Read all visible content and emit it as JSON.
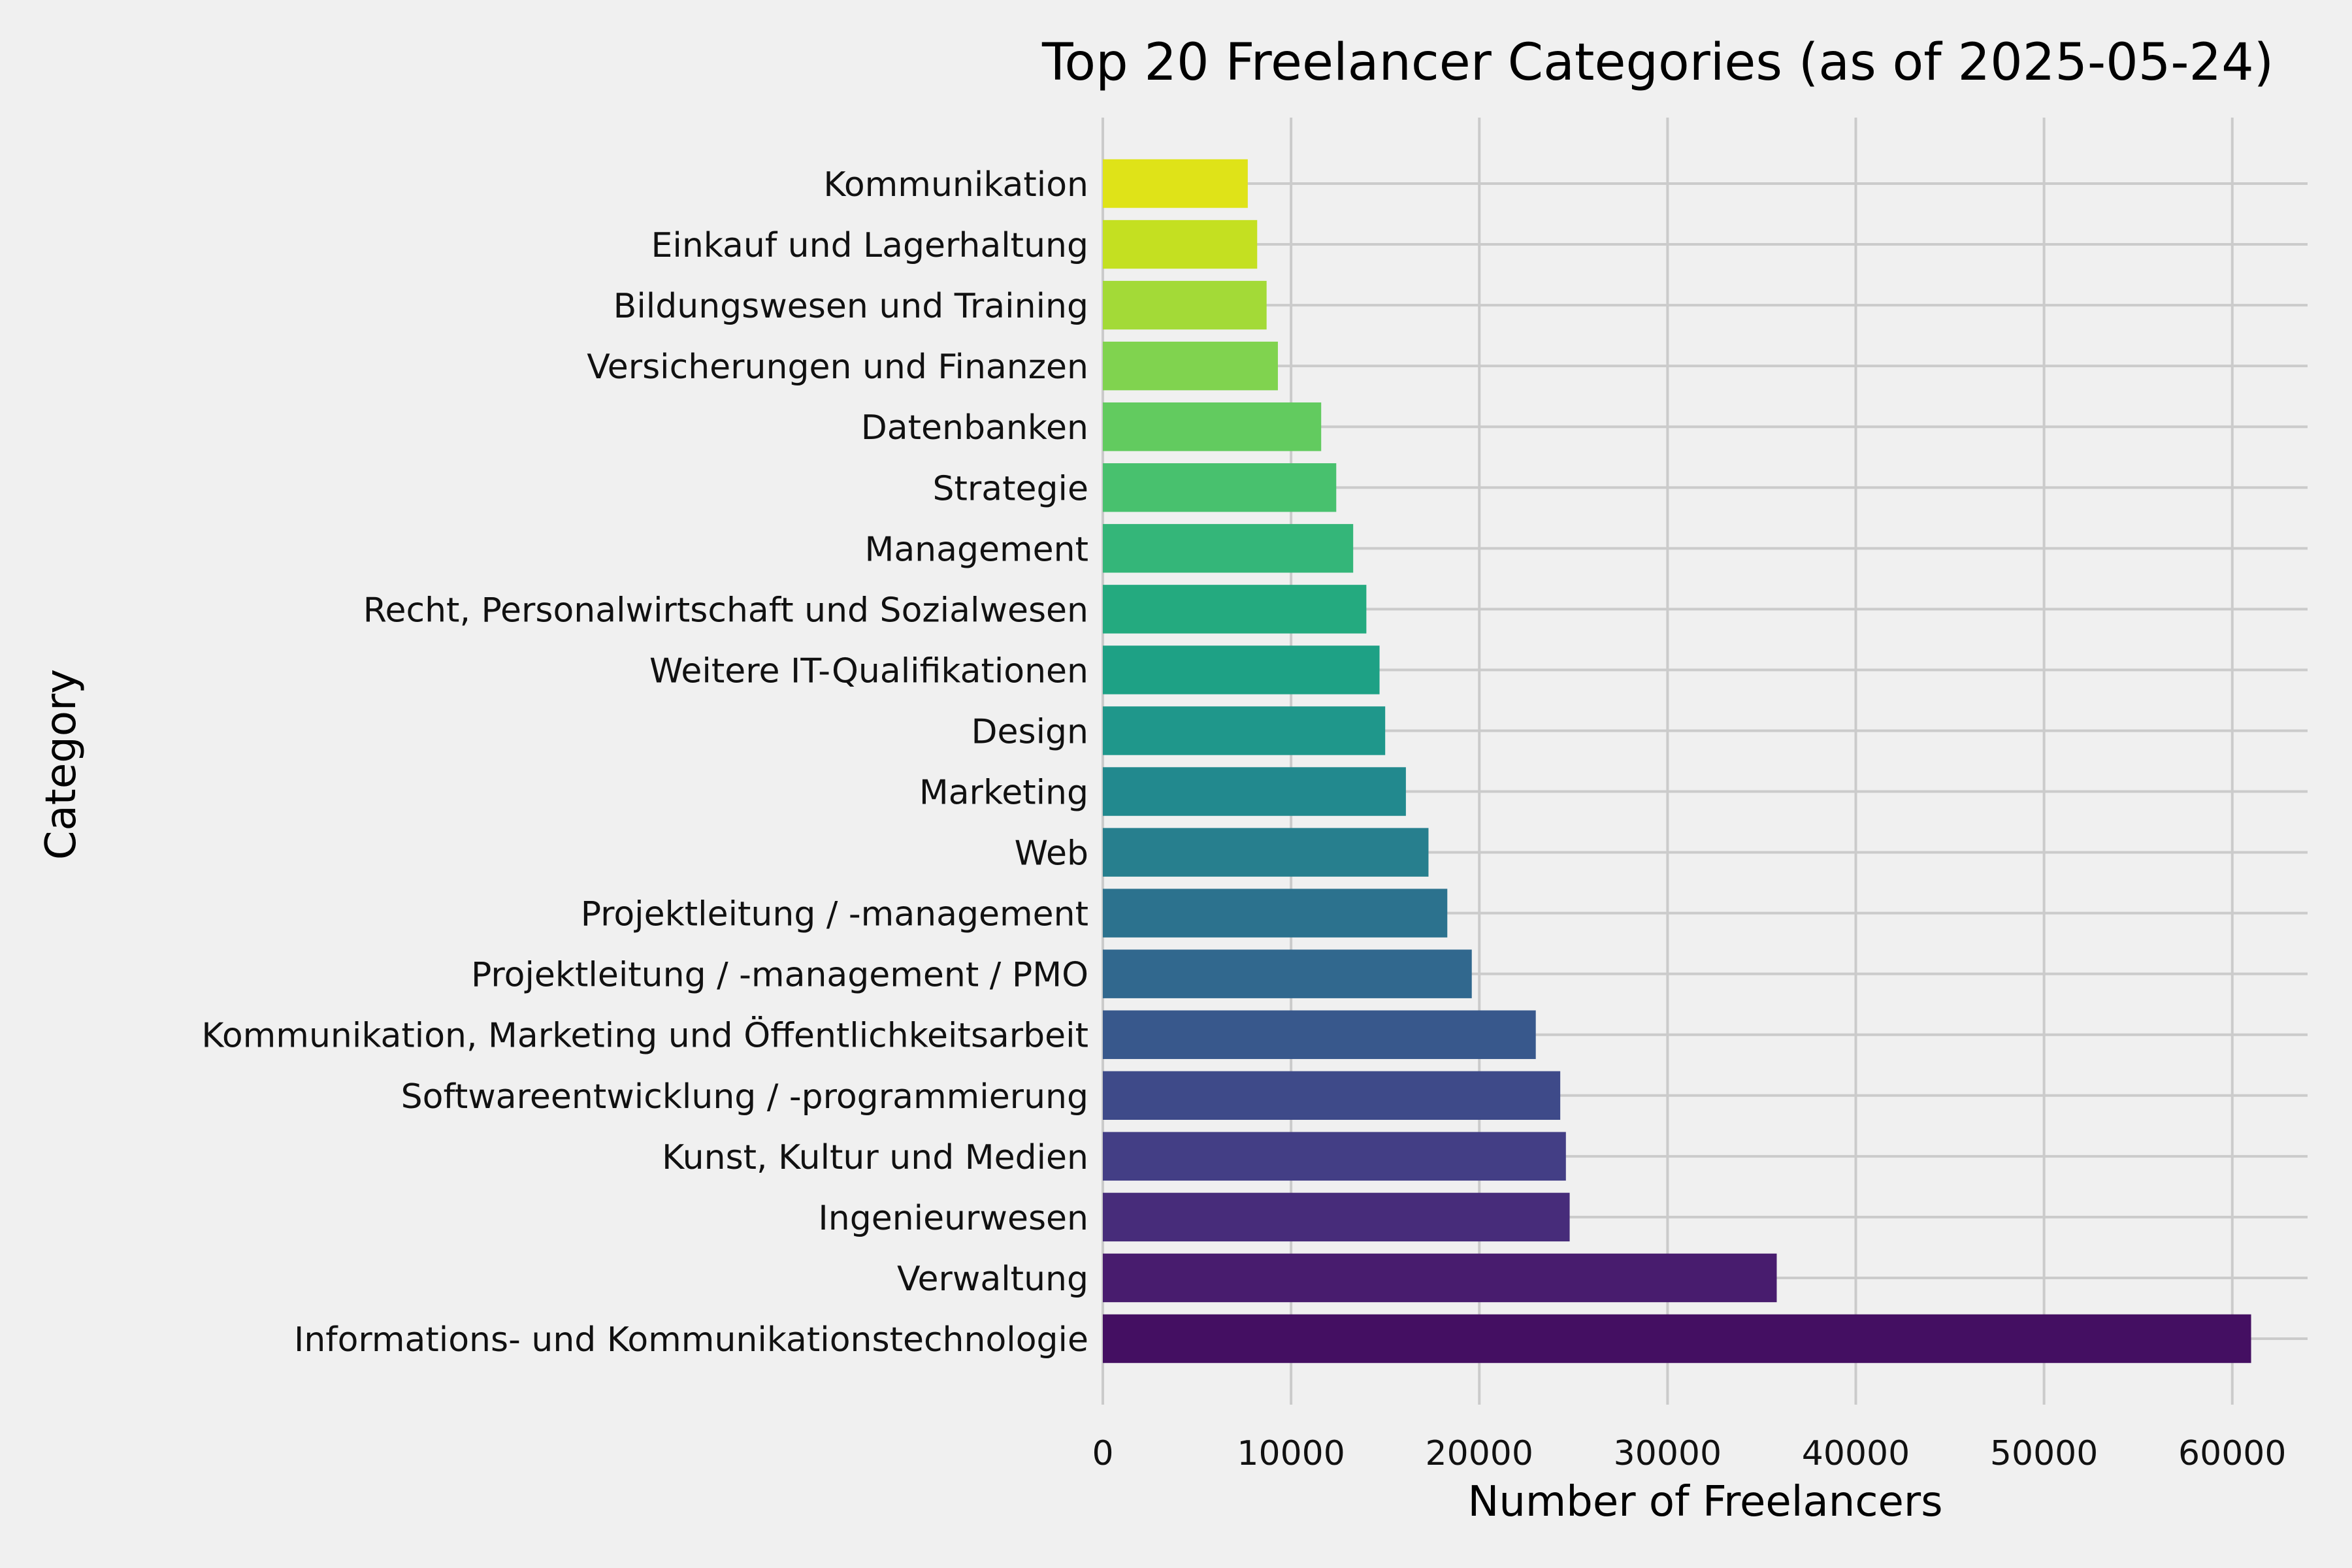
{
  "chart_data": {
    "type": "bar",
    "orientation": "horizontal",
    "title": "Top 20 Freelancer Categories (as of 2025-05-24)",
    "xlabel": "Number of Freelancers",
    "ylabel": "Category",
    "xlim": [
      0,
      64000
    ],
    "xticks": [
      0,
      10000,
      20000,
      30000,
      40000,
      50000,
      60000
    ],
    "grid": true,
    "background": "#f0f0f0",
    "colormap": "viridis",
    "categories": [
      "Informations- und Kommunikationstechnologie",
      "Verwaltung",
      "Ingenieurwesen",
      "Kunst, Kultur und Medien",
      "Softwareentwicklung / -programmierung",
      "Kommunikation, Marketing und Öffentlichkeitsarbeit",
      "Projektleitung / -management / PMO",
      "Projektleitung / -management",
      "Web",
      "Marketing",
      "Design",
      "Weitere IT-Qualifikationen",
      "Recht, Personalwirtschaft und Sozialwesen",
      "Management",
      "Strategie",
      "Datenbanken",
      "Versicherungen und Finanzen",
      "Bildungswesen und Training",
      "Einkauf und Lagerhaltung",
      "Kommunikation"
    ],
    "values": [
      61000,
      35800,
      24800,
      24600,
      24300,
      23000,
      19600,
      18300,
      17300,
      16100,
      15000,
      14700,
      14000,
      13300,
      12400,
      11600,
      9300,
      8700,
      8200,
      7700
    ],
    "colors": [
      "#440f62",
      "#481c6e",
      "#472c7a",
      "#433e85",
      "#3e4a89",
      "#38588c",
      "#31688e",
      "#2c728e",
      "#277f8e",
      "#22898e",
      "#1f978b",
      "#1ea185",
      "#24aa7f",
      "#34b679",
      "#48c16e",
      "#62cb5f",
      "#80d34f",
      "#a3da37",
      "#c4e021",
      "#dfe318"
    ]
  }
}
